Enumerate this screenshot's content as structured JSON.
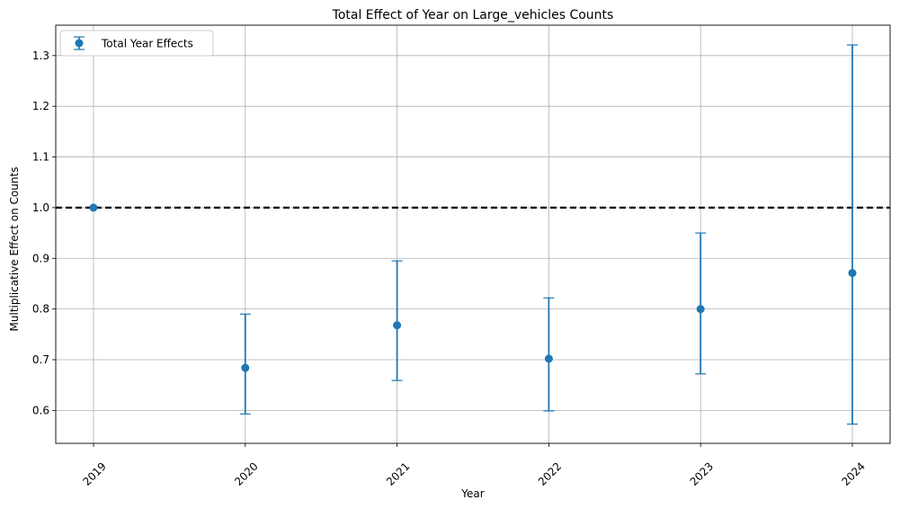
{
  "chart_data": {
    "type": "scatter",
    "title": "Total Effect of Year on Large_vehicles Counts",
    "xlabel": "Year",
    "ylabel": "Multiplicative Effect on Counts",
    "categories": [
      "2019",
      "2020",
      "2021",
      "2022",
      "2023",
      "2024"
    ],
    "series": [
      {
        "name": "Total Year Effects",
        "color": "#1f77b4",
        "values": [
          1.0,
          0.684,
          0.768,
          0.702,
          0.8,
          0.871
        ],
        "lower": [
          1.0,
          0.593,
          0.659,
          0.599,
          0.672,
          0.573
        ],
        "upper": [
          1.0,
          0.79,
          0.895,
          0.822,
          0.95,
          1.321
        ]
      }
    ],
    "reference_line": {
      "y": 1.0,
      "style": "dashed",
      "color": "#000000"
    },
    "ylim": [
      0.535,
      1.36
    ],
    "yticks": [
      "0.6",
      "0.7",
      "0.8",
      "0.9",
      "1.0",
      "1.1",
      "1.2",
      "1.3"
    ],
    "grid": true,
    "legend_position": "top-left",
    "xtick_rotation": 45
  }
}
